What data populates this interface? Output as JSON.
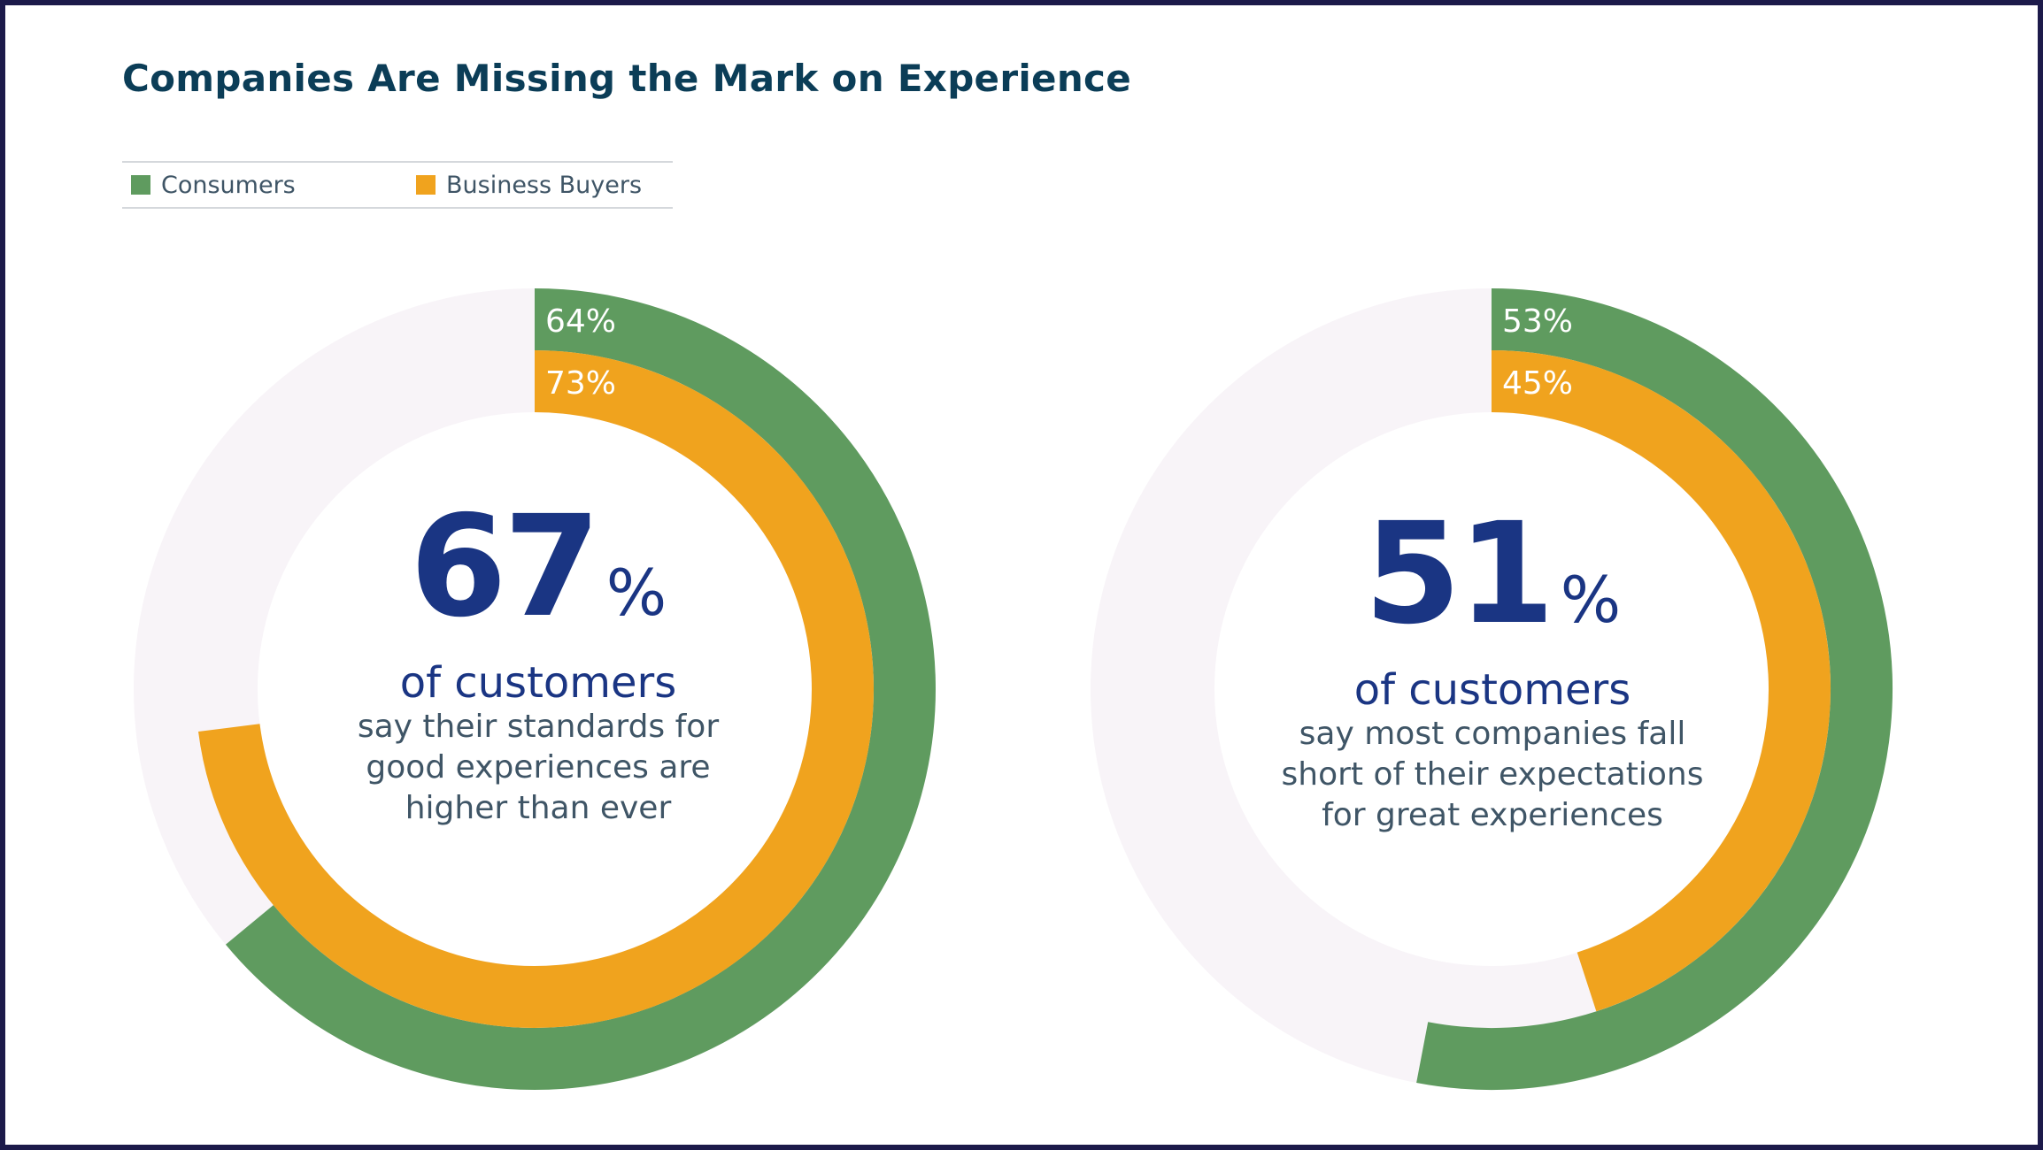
{
  "title": "Companies Are Missing the Mark on Experience",
  "legend": {
    "consumers": "Consumers",
    "business": "Business Buyers"
  },
  "colors": {
    "consumers": "#5f9b5f",
    "business": "#f0a31e",
    "track": "#f8f4f8",
    "title": "#0b3d57",
    "accent": "#1a3583"
  },
  "chart_data": [
    {
      "type": "pie",
      "series": [
        {
          "name": "Consumers",
          "value": 64,
          "label": "64%"
        },
        {
          "name": "Business Buyers",
          "value": 73,
          "label": "73%"
        }
      ],
      "headline": {
        "value": "67",
        "unit": "%",
        "subject": "of customers",
        "lines": [
          "say their standards for",
          "good experiences are",
          "higher than ever"
        ]
      }
    },
    {
      "type": "pie",
      "series": [
        {
          "name": "Consumers",
          "value": 53,
          "label": "53%"
        },
        {
          "name": "Business Buyers",
          "value": 45,
          "label": "45%"
        }
      ],
      "headline": {
        "value": "51",
        "unit": "%",
        "subject": "of customers",
        "lines": [
          "say most companies fall",
          "short of their expectations",
          "for great experiences"
        ]
      }
    }
  ]
}
